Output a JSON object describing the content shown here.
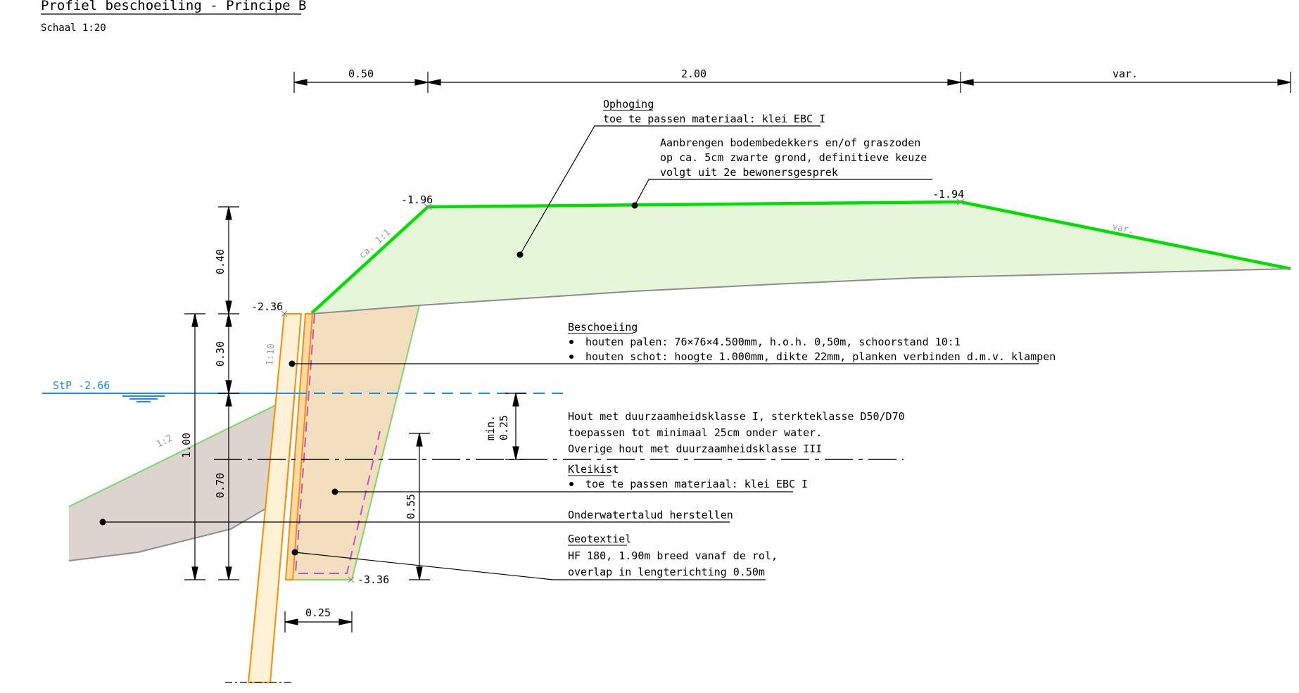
{
  "title": "Profiel beschoeiling - Principe B",
  "scale": "Schaal 1:20",
  "colors": {
    "green_line": "#00e000",
    "light_green_fill": "#e6f7d9",
    "clay_fill": "#f3dfbe",
    "underwater_fill": "#ddd3cf",
    "pile_orange": "#ff8c00",
    "pile_fill": "#fff1d6",
    "water_blue": "#1d8fe0",
    "geotextile": "#bb55cc"
  },
  "top_dims": {
    "d1": "0.50",
    "d2": "2.00",
    "d3": "var."
  },
  "levels": {
    "top_left": "-1.96",
    "top_right": "-1.94",
    "pile_top": "-2.36",
    "bottom": "-3.36",
    "water": "StP -2.66"
  },
  "slopes": {
    "upper": "ca. 1:1",
    "pile": "1:10",
    "lower": "1:2",
    "right": "var."
  },
  "vert_dims": {
    "d040": "0.40",
    "d030": "0.30",
    "d070": "0.70",
    "d100": "1.00",
    "min_label": "min.",
    "d025": "0.25",
    "d055": "0.55",
    "bottom_width": "0.25"
  },
  "annotations": {
    "ophoging_title": "Ophoging",
    "ophoging_text": "toe te passen materiaal: klei EBC I",
    "bodem_1": "Aanbrengen bodembedekkers en/of graszoden",
    "bodem_2": "op ca. 5cm zwarte grond, definitieve keuze",
    "bodem_3": "volgt uit 2e bewonersgesprek",
    "beschoeiing_title": "Beschoeiing",
    "beschoeiing_1": "houten palen: 76×76×4.500mm, h.o.h. 0,50m, schoorstand 10:1",
    "beschoeiing_2": "houten schot: hoogte 1.000mm, dikte 22mm, planken verbinden d.m.v. klampen",
    "hout_1": "Hout met duurzaamheidsklasse I, sterkteklasse D50/D70",
    "hout_2": "toepassen tot minimaal 25cm onder water.",
    "hout_3": "Overige hout met duurzaamheidsklasse III",
    "kleikist_title": "Kleikist",
    "kleikist_text": "toe te passen materiaal: klei EBC I",
    "onderwater": "Onderwatertalud herstellen",
    "geotextiel_title": "Geotextiel",
    "geotextiel_1": "HF 180, 1.90m breed vanaf de rol,",
    "geotextiel_2": "overlap in lengterichting 0.50m"
  }
}
